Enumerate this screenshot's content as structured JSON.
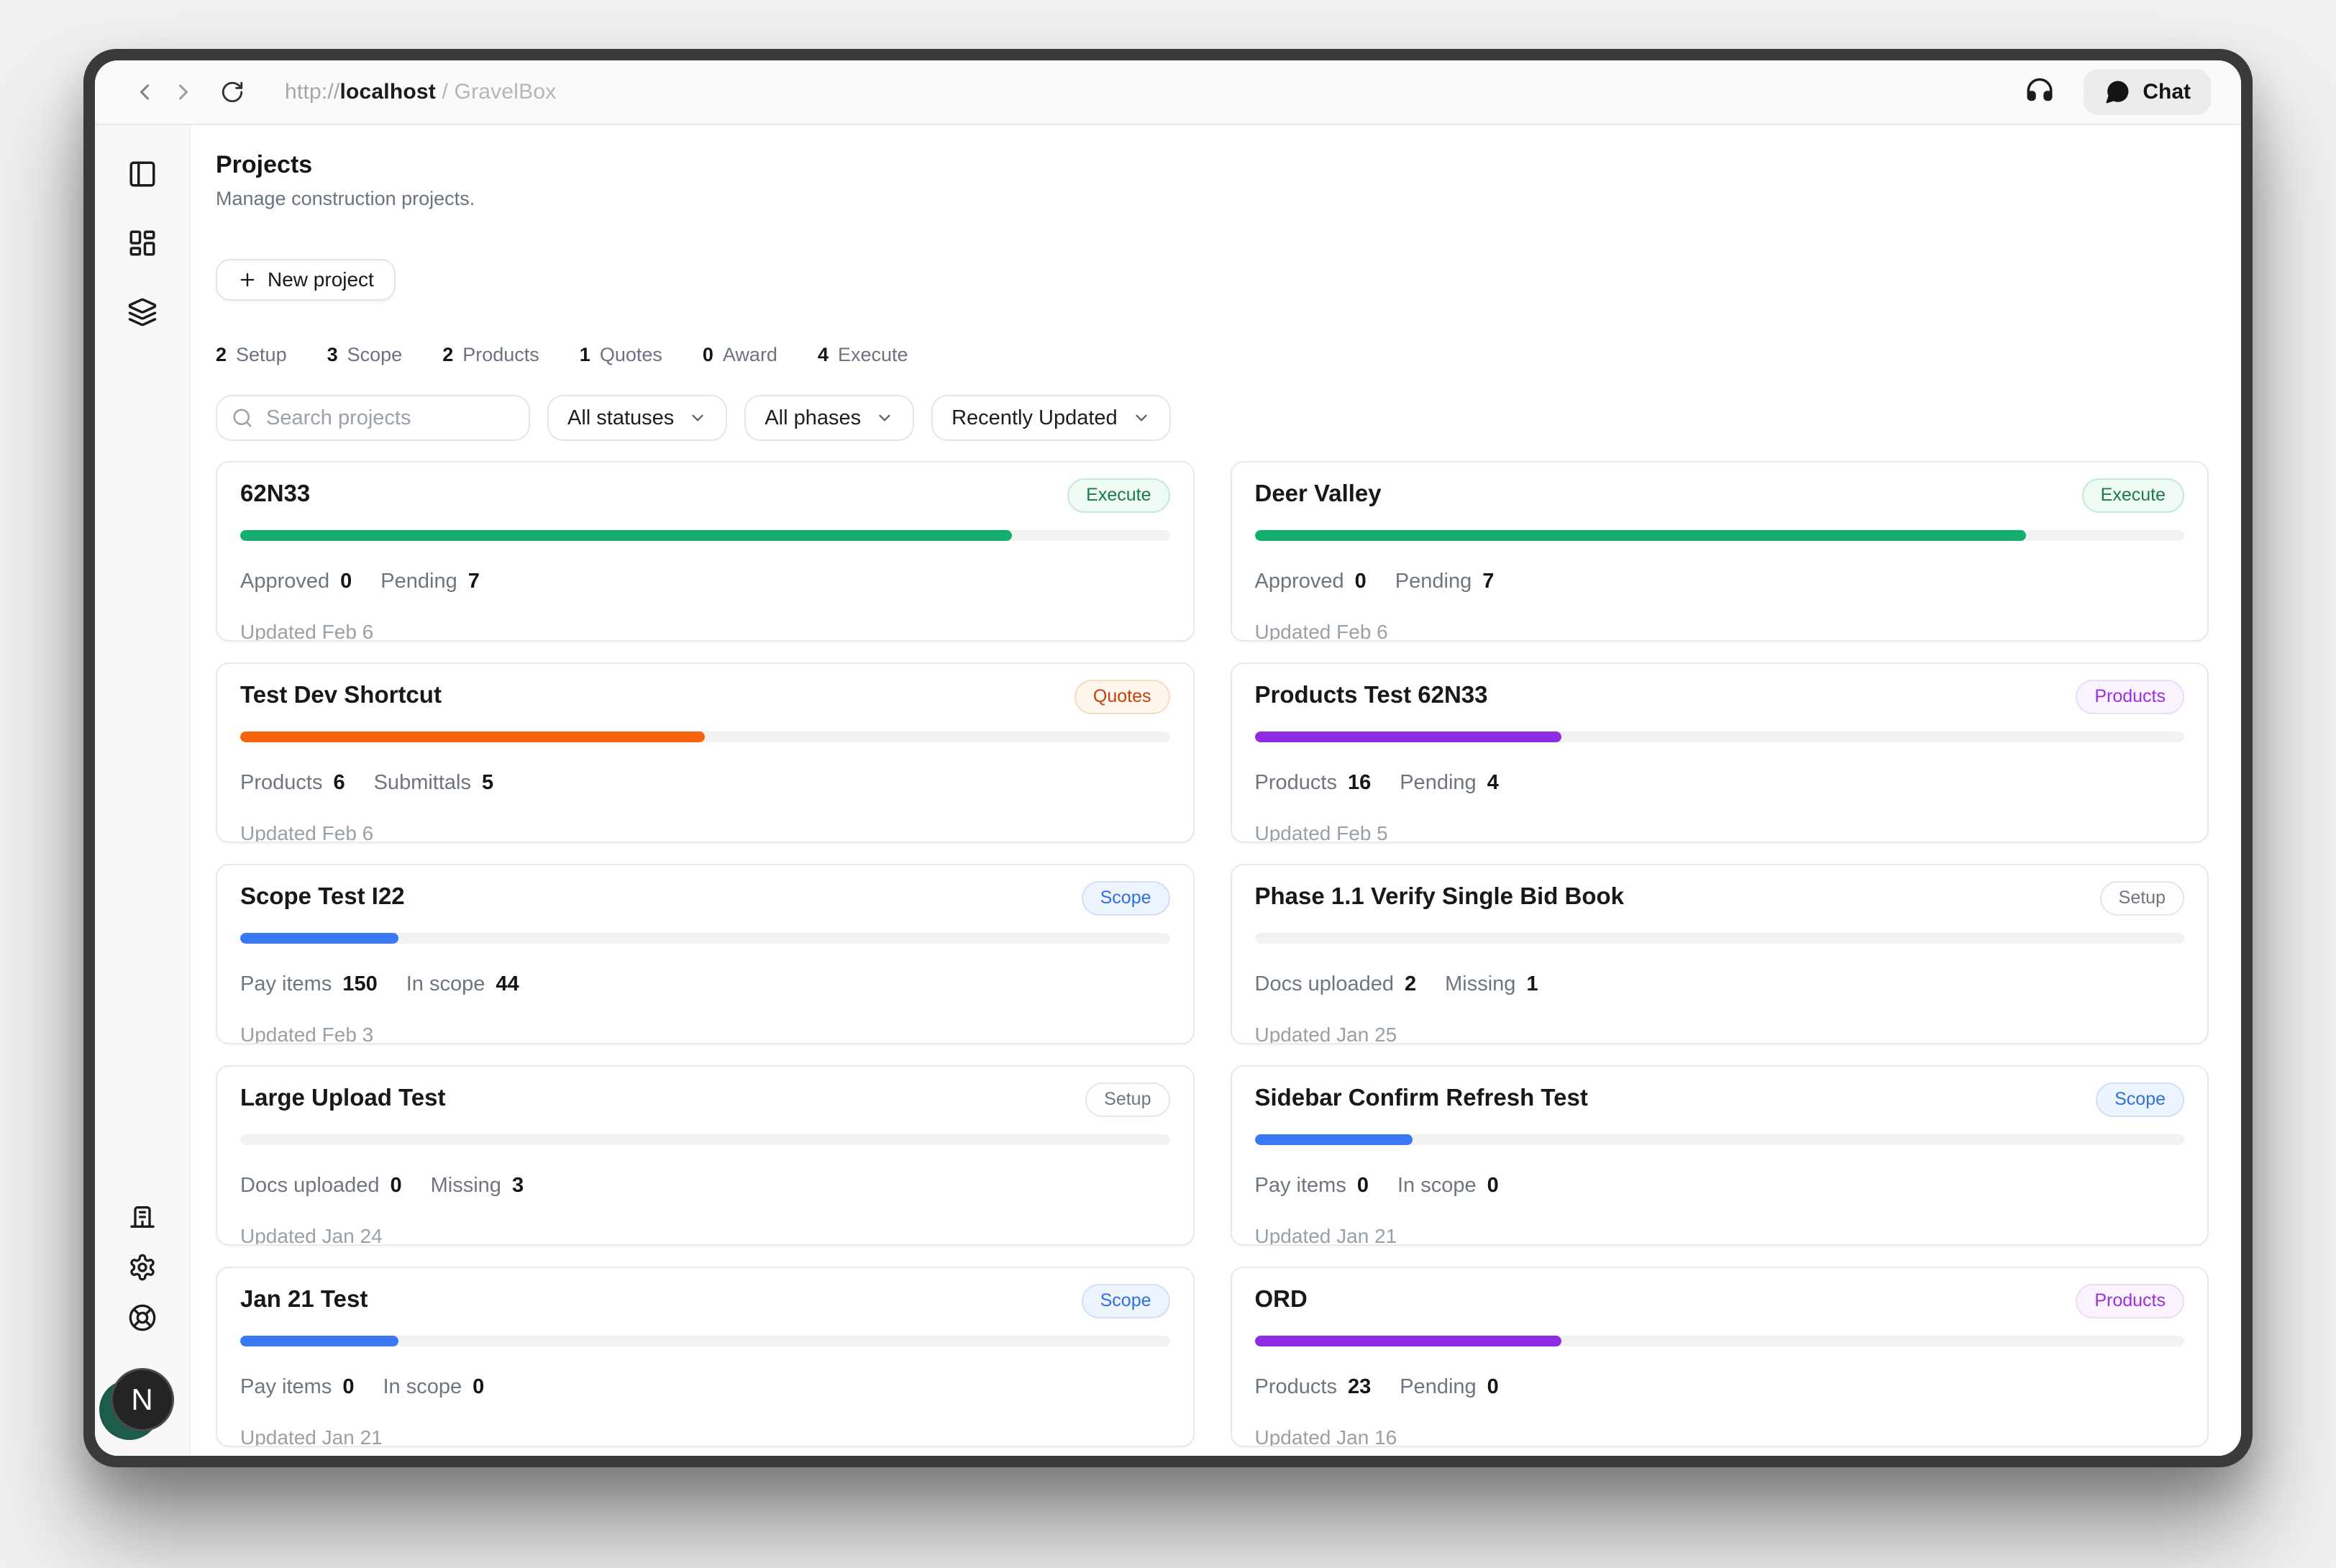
{
  "browser": {
    "url_prefix": "http://",
    "url_host": "localhost",
    "url_suffix": " / GravelBox",
    "chat_label": "Chat"
  },
  "header": {
    "title": "Projects",
    "subtitle": "Manage construction projects."
  },
  "toolbar": {
    "new_project_label": "New project"
  },
  "phase_counts": [
    {
      "count": "2",
      "label": "Setup"
    },
    {
      "count": "3",
      "label": "Scope"
    },
    {
      "count": "2",
      "label": "Products"
    },
    {
      "count": "1",
      "label": "Quotes"
    },
    {
      "count": "0",
      "label": "Award"
    },
    {
      "count": "4",
      "label": "Execute"
    }
  ],
  "filters": {
    "search_placeholder": "Search projects",
    "status_filter_label": "All statuses",
    "phase_filter_label": "All phases",
    "sort_label": "Recently Updated"
  },
  "sidebar": {
    "top_icons": [
      "panel-left-icon",
      "layout-dashboard-icon",
      "layers-icon"
    ],
    "bottom_icons": [
      "building-icon",
      "settings-icon",
      "life-buoy-icon"
    ],
    "avatar_initial": "N"
  },
  "icons": [
    "back-icon",
    "forward-icon",
    "refresh-icon",
    "headset-icon",
    "chat-bubble-icon",
    "plus-icon",
    "search-icon",
    "chevron-down-icon"
  ],
  "phase_styles": {
    "execute": {
      "text": "#1a7a52",
      "bg": "#eefaf3",
      "border": "#c3ead5",
      "bar": "#14ae70"
    },
    "quotes": {
      "text": "#c2410c",
      "bg": "#fdf6ed",
      "border": "#f3ddc0",
      "bar": "#f5640d"
    },
    "products": {
      "text": "#9d2fe0",
      "bg": "#faf3fe",
      "border": "#ecdcf9",
      "bar": "#8f2ce4"
    },
    "scope": {
      "text": "#2f6fe4",
      "bg": "#eef4fd",
      "border": "#cfe0fa",
      "bar": "#3b78f4"
    },
    "setup": {
      "text": "#6f7680",
      "bg": "#fefefe",
      "border": "#e6e6e5",
      "bar": "#e5e5e4"
    }
  },
  "projects": [
    {
      "name": "62N33",
      "phase": "Execute",
      "phase_key": "execute",
      "progress": 83,
      "stats": [
        {
          "label": "Approved",
          "value": "0"
        },
        {
          "label": "Pending",
          "value": "7"
        }
      ],
      "updated": "Updated Feb 6"
    },
    {
      "name": "Deer Valley",
      "phase": "Execute",
      "phase_key": "execute",
      "progress": 83,
      "stats": [
        {
          "label": "Approved",
          "value": "0"
        },
        {
          "label": "Pending",
          "value": "7"
        }
      ],
      "updated": "Updated Feb 6"
    },
    {
      "name": "Test Dev Shortcut",
      "phase": "Quotes",
      "phase_key": "quotes",
      "progress": 50,
      "stats": [
        {
          "label": "Products",
          "value": "6"
        },
        {
          "label": "Submittals",
          "value": "5"
        }
      ],
      "updated": "Updated Feb 6"
    },
    {
      "name": "Products Test 62N33",
      "phase": "Products",
      "phase_key": "products",
      "progress": 33,
      "stats": [
        {
          "label": "Products",
          "value": "16"
        },
        {
          "label": "Pending",
          "value": "4"
        }
      ],
      "updated": "Updated Feb 5"
    },
    {
      "name": "Scope Test I22",
      "phase": "Scope",
      "phase_key": "scope",
      "progress": 17,
      "stats": [
        {
          "label": "Pay items",
          "value": "150"
        },
        {
          "label": "In scope",
          "value": "44"
        }
      ],
      "updated": "Updated Feb 3"
    },
    {
      "name": "Phase 1.1 Verify Single Bid Book",
      "phase": "Setup",
      "phase_key": "setup",
      "progress": 0,
      "stats": [
        {
          "label": "Docs uploaded",
          "value": "2"
        },
        {
          "label": "Missing",
          "value": "1"
        }
      ],
      "updated": "Updated Jan 25"
    },
    {
      "name": "Large Upload Test",
      "phase": "Setup",
      "phase_key": "setup",
      "progress": 0,
      "stats": [
        {
          "label": "Docs uploaded",
          "value": "0"
        },
        {
          "label": "Missing",
          "value": "3"
        }
      ],
      "updated": "Updated Jan 24"
    },
    {
      "name": "Sidebar Confirm Refresh Test",
      "phase": "Scope",
      "phase_key": "scope",
      "progress": 17,
      "stats": [
        {
          "label": "Pay items",
          "value": "0"
        },
        {
          "label": "In scope",
          "value": "0"
        }
      ],
      "updated": "Updated Jan 21"
    },
    {
      "name": "Jan 21 Test",
      "phase": "Scope",
      "phase_key": "scope",
      "progress": 17,
      "stats": [
        {
          "label": "Pay items",
          "value": "0"
        },
        {
          "label": "In scope",
          "value": "0"
        }
      ],
      "updated": "Updated Jan 21"
    },
    {
      "name": "ORD",
      "phase": "Products",
      "phase_key": "products",
      "progress": 33,
      "stats": [
        {
          "label": "Products",
          "value": "23"
        },
        {
          "label": "Pending",
          "value": "0"
        }
      ],
      "updated": "Updated Jan 16"
    }
  ]
}
